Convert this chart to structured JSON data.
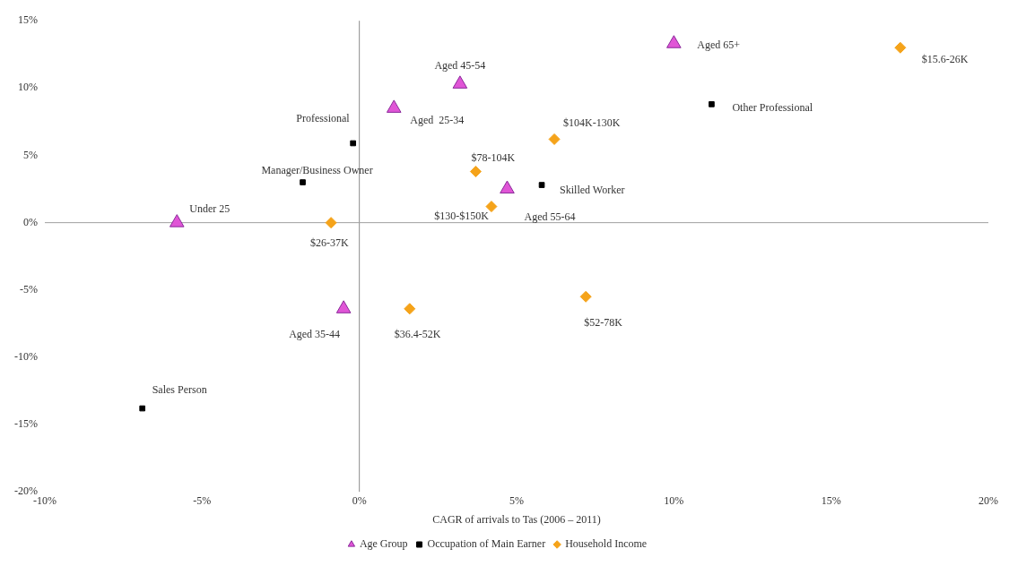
{
  "chart_data": {
    "type": "scatter",
    "xlabel": "CAGR of arrivals to Tas (2006 – 2011)",
    "xlim": [
      -10,
      20
    ],
    "xticks": [
      {
        "value": -10,
        "label": "-10%"
      },
      {
        "value": -5,
        "label": "-5%"
      },
      {
        "value": 0,
        "label": "0%"
      },
      {
        "value": 5,
        "label": "5%"
      },
      {
        "value": 10,
        "label": "10%"
      },
      {
        "value": 15,
        "label": "15%"
      },
      {
        "value": 20,
        "label": "20%"
      }
    ],
    "ylim": [
      -20,
      15
    ],
    "yticks": [
      {
        "value": -20,
        "label": "-20%"
      },
      {
        "value": -15,
        "label": "-15%"
      },
      {
        "value": -10,
        "label": "-10%"
      },
      {
        "value": -5,
        "label": "-5%"
      },
      {
        "value": 0,
        "label": "0%"
      },
      {
        "value": 5,
        "label": "5%"
      },
      {
        "value": 10,
        "label": "10%"
      },
      {
        "value": 15,
        "label": "15%"
      }
    ],
    "grid": false,
    "legend": "bottom",
    "ref_lines": [
      {
        "axis": "x",
        "value": 0,
        "color": "#8c8c8c"
      },
      {
        "axis": "y",
        "value": 0,
        "color": "#a0a0a0"
      }
    ],
    "series": [
      {
        "name": "Age Group",
        "color": "#e055d6",
        "marker": "triangle",
        "x": [
          -5.8,
          1.1,
          -0.5,
          3.2,
          4.7,
          10.0
        ],
        "values": [
          0,
          8.5,
          -6.4,
          10.3,
          2.5,
          13.3
        ]
      },
      {
        "name": "Occupation of Main Earner",
        "color": "#000000",
        "marker": "square",
        "x": [
          -0.2,
          -1.8,
          -6.9,
          5.8,
          11.2
        ],
        "values": [
          5.9,
          3.0,
          -13.8,
          2.8,
          8.8
        ]
      },
      {
        "name": "Household Income",
        "color": "#f5a31a",
        "marker": "diamond",
        "x": [
          17.2,
          6.2,
          3.7,
          4.2,
          -0.9,
          1.6,
          7.2
        ],
        "values": [
          13.0,
          6.2,
          3.8,
          1.2,
          0,
          -6.4,
          -5.5
        ]
      }
    ],
    "annotations": [
      {
        "text": "Under 25",
        "x": -5.8,
        "y": 0
      },
      {
        "text": "Aged  25-34",
        "x": 1.1,
        "y": 8.5
      },
      {
        "text": "Aged 35-44",
        "x": -0.5,
        "y": -6.4
      },
      {
        "text": "Aged 45-54",
        "x": 3.2,
        "y": 10.3
      },
      {
        "text": "Aged 55-64",
        "x": 4.7,
        "y": 2.5
      },
      {
        "text": "Aged 65+",
        "x": 10.0,
        "y": 13.3
      },
      {
        "text": "Professional",
        "x": -0.2,
        "y": 5.9
      },
      {
        "text": "Manager/Business Owner",
        "x": -1.8,
        "y": 3.0
      },
      {
        "text": "Sales Person",
        "x": -6.9,
        "y": -13.8
      },
      {
        "text": "Skilled Worker",
        "x": 5.8,
        "y": 2.8
      },
      {
        "text": "Other Professional",
        "x": 11.2,
        "y": 8.8
      },
      {
        "text": "$15.6-26K",
        "x": 17.2,
        "y": 13.0
      },
      {
        "text": "$104K-130K",
        "x": 6.2,
        "y": 6.2
      },
      {
        "text": "$78-104K",
        "x": 3.7,
        "y": 3.8
      },
      {
        "text": "$130-$150K",
        "x": 4.2,
        "y": 1.2
      },
      {
        "text": "$26-37K",
        "x": -0.9,
        "y": 0
      },
      {
        "text": "$36.4-52K",
        "x": 1.6,
        "y": -6.4
      },
      {
        "text": "$52-78K",
        "x": 7.2,
        "y": -5.5
      }
    ]
  }
}
